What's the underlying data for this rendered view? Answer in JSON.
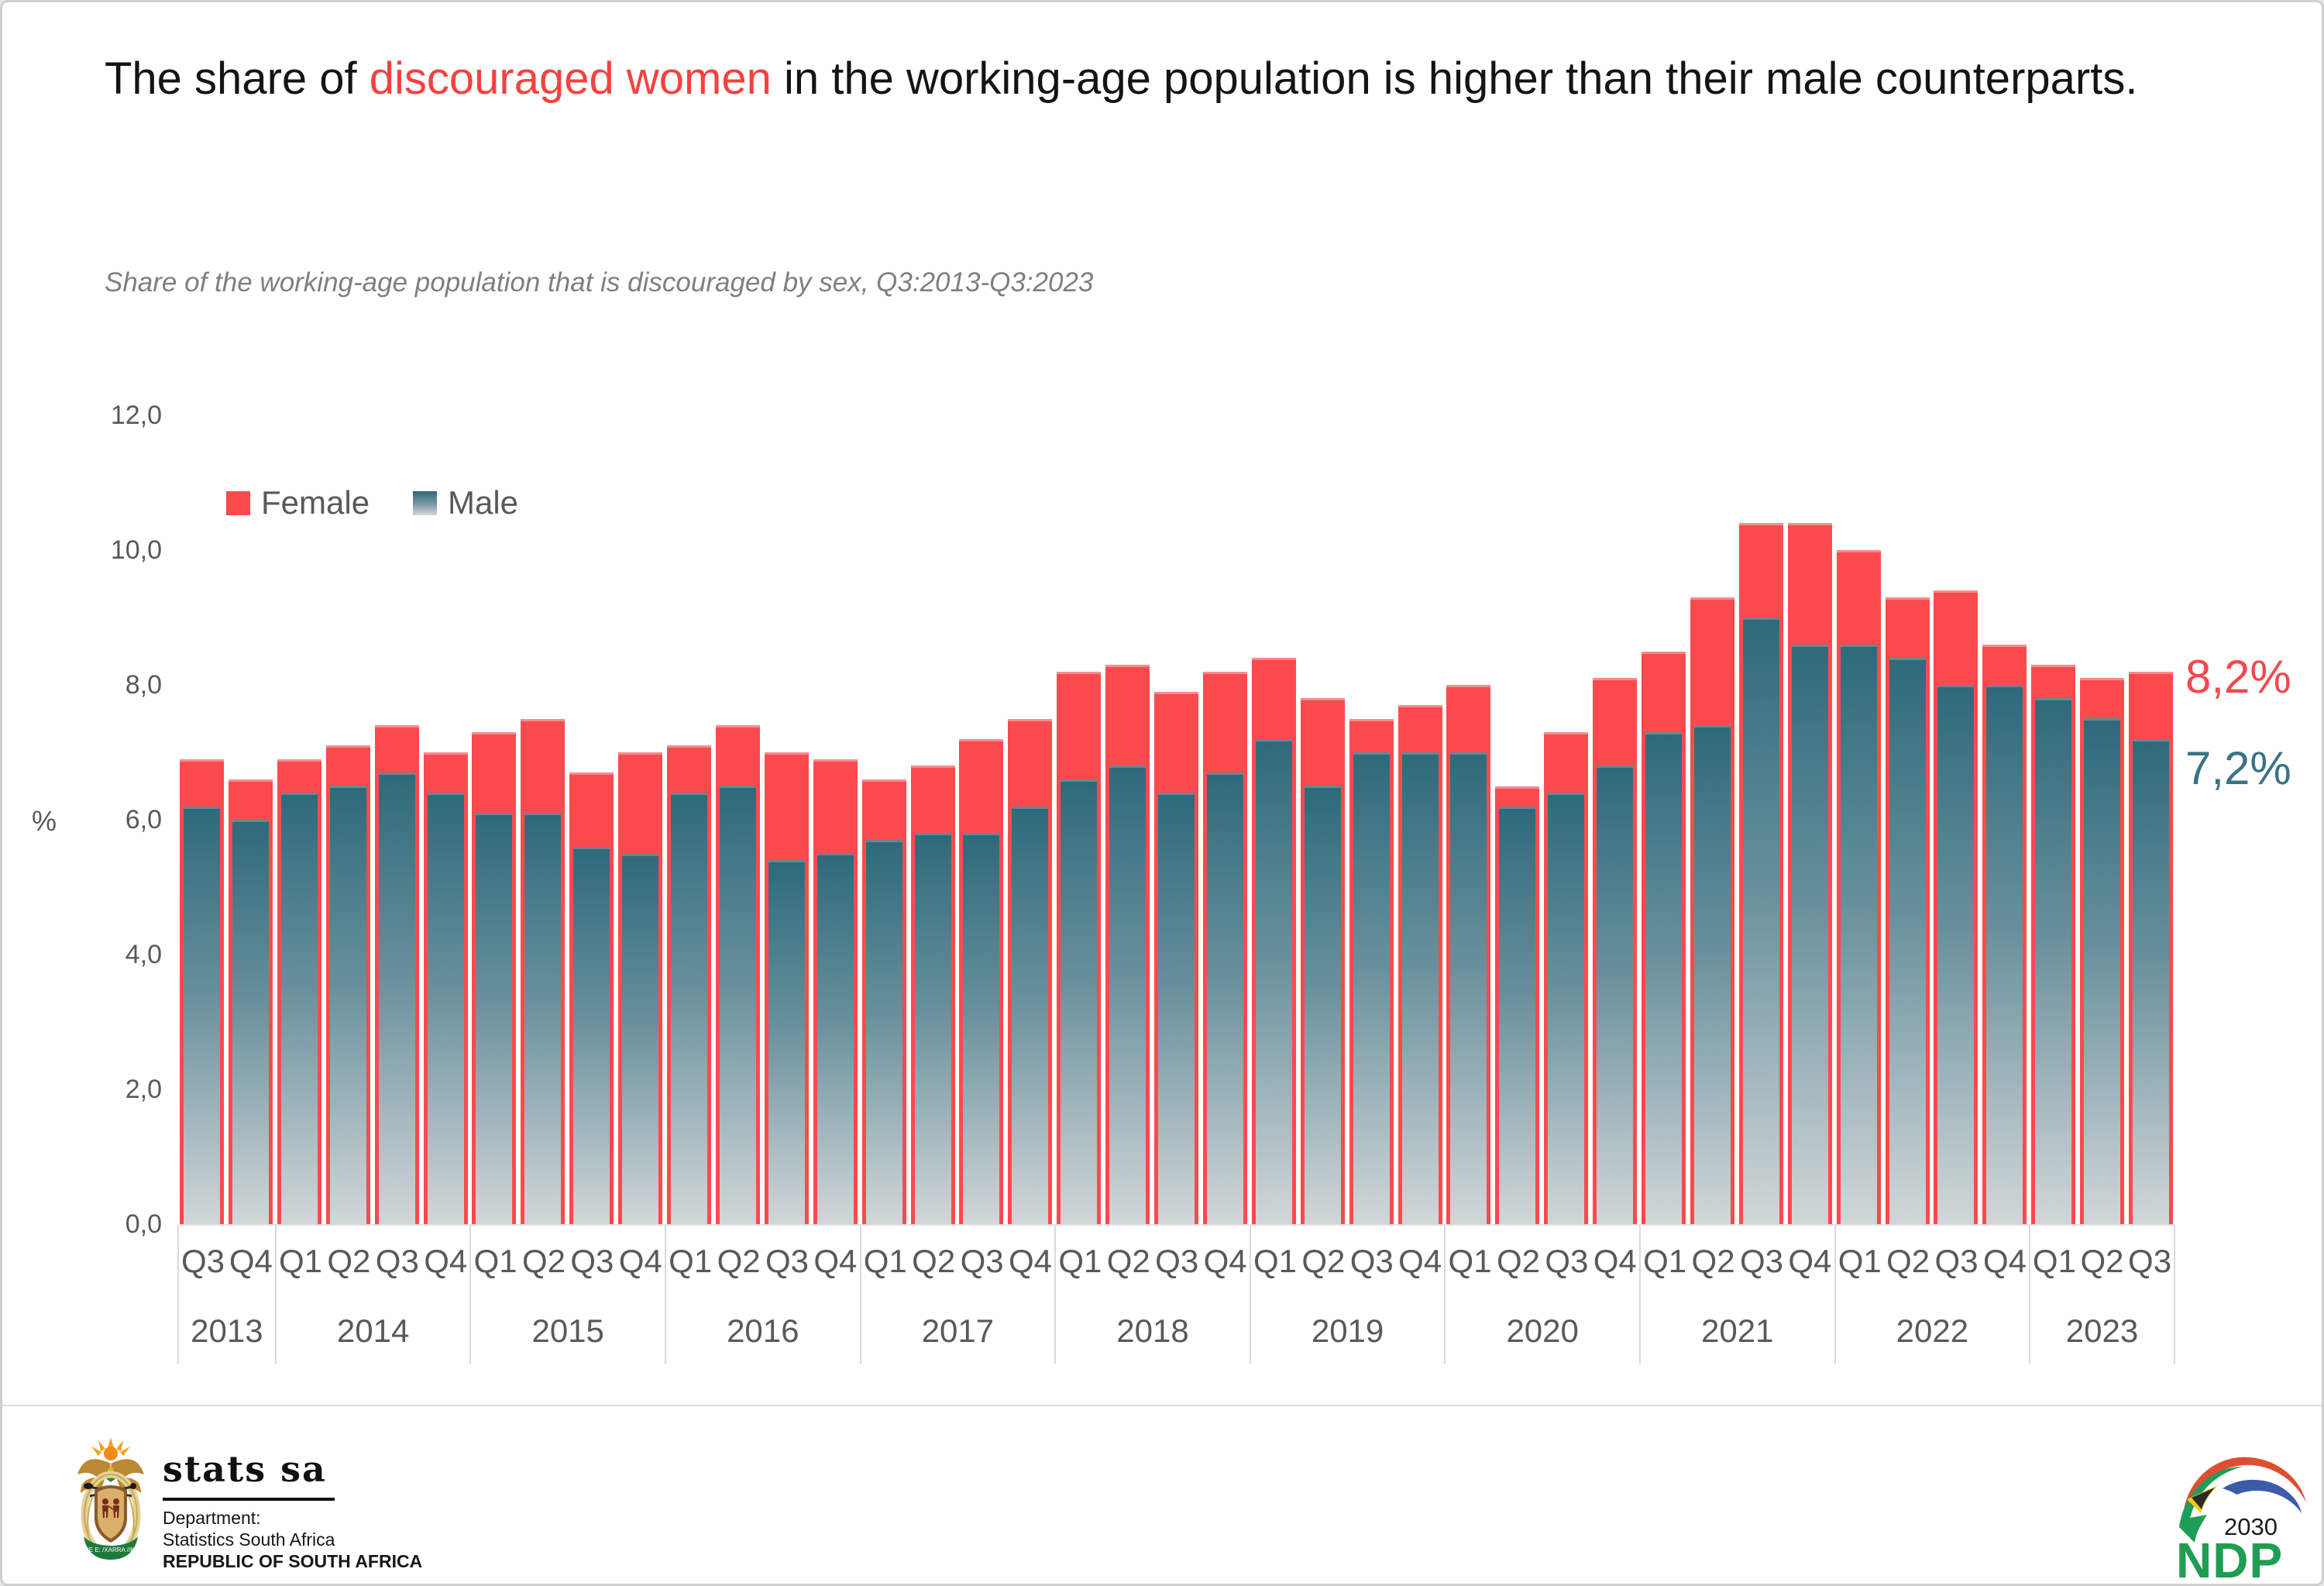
{
  "title": {
    "prefix": "The share of ",
    "highlight": "discouraged women",
    "suffix": " in the working-age population is higher than their male counterparts."
  },
  "subtitle": "Share of the working-age population that is discouraged by sex, Q3:2013-Q3:2023",
  "legend": {
    "female_label": "Female",
    "male_label": "Male"
  },
  "colors": {
    "female_bar": "#fb4a4e",
    "male_bar_top": "#2e6a7b",
    "male_bar_bottom": "#d2d7d9",
    "female_end_label": "#f4484c",
    "male_end_label": "#3a7386",
    "axis_text": "#595959",
    "title_highlight": "#f5413e",
    "subtitle_text": "#7f7f7f"
  },
  "y_axis": {
    "unit": "%",
    "tick_values": [
      0,
      2,
      4,
      6,
      8,
      10,
      12
    ],
    "tick_labels": [
      "0,0",
      "2,0",
      "4,0",
      "6,0",
      "8,0",
      "10,0",
      "12,0"
    ]
  },
  "end_labels": {
    "female": "8,2%",
    "male": "7,2%"
  },
  "chart_data": {
    "type": "bar",
    "title": "Share of the working-age population that is discouraged by sex, Q3:2013-Q3:2023",
    "xlabel": "",
    "ylabel": "%",
    "ylim": [
      0,
      12
    ],
    "grid": false,
    "legend_position": "top-left",
    "bar_style": "overlapped (Male bar drawn inside Female bar)",
    "years": [
      {
        "year": "2013",
        "quarters": [
          "Q3",
          "Q4"
        ]
      },
      {
        "year": "2014",
        "quarters": [
          "Q1",
          "Q2",
          "Q3",
          "Q4"
        ]
      },
      {
        "year": "2015",
        "quarters": [
          "Q1",
          "Q2",
          "Q3",
          "Q4"
        ]
      },
      {
        "year": "2016",
        "quarters": [
          "Q1",
          "Q2",
          "Q3",
          "Q4"
        ]
      },
      {
        "year": "2017",
        "quarters": [
          "Q1",
          "Q2",
          "Q3",
          "Q4"
        ]
      },
      {
        "year": "2018",
        "quarters": [
          "Q1",
          "Q2",
          "Q3",
          "Q4"
        ]
      },
      {
        "year": "2019",
        "quarters": [
          "Q1",
          "Q2",
          "Q3",
          "Q4"
        ]
      },
      {
        "year": "2020",
        "quarters": [
          "Q1",
          "Q2",
          "Q3",
          "Q4"
        ]
      },
      {
        "year": "2021",
        "quarters": [
          "Q1",
          "Q2",
          "Q3",
          "Q4"
        ]
      },
      {
        "year": "2022",
        "quarters": [
          "Q1",
          "Q2",
          "Q3",
          "Q4"
        ]
      },
      {
        "year": "2023",
        "quarters": [
          "Q1",
          "Q2",
          "Q3"
        ]
      }
    ],
    "categories": [
      "Q3 2013",
      "Q4 2013",
      "Q1 2014",
      "Q2 2014",
      "Q3 2014",
      "Q4 2014",
      "Q1 2015",
      "Q2 2015",
      "Q3 2015",
      "Q4 2015",
      "Q1 2016",
      "Q2 2016",
      "Q3 2016",
      "Q4 2016",
      "Q1 2017",
      "Q2 2017",
      "Q3 2017",
      "Q4 2017",
      "Q1 2018",
      "Q2 2018",
      "Q3 2018",
      "Q4 2018",
      "Q1 2019",
      "Q2 2019",
      "Q3 2019",
      "Q4 2019",
      "Q1 2020",
      "Q2 2020",
      "Q3 2020",
      "Q4 2020",
      "Q1 2021",
      "Q2 2021",
      "Q3 2021",
      "Q4 2021",
      "Q1 2022",
      "Q2 2022",
      "Q3 2022",
      "Q4 2022",
      "Q1 2023",
      "Q2 2023",
      "Q3 2023"
    ],
    "series": [
      {
        "name": "Female",
        "values": [
          6.9,
          6.6,
          6.9,
          7.1,
          7.4,
          7.0,
          7.3,
          7.5,
          6.7,
          7.0,
          7.1,
          7.4,
          7.0,
          6.9,
          6.6,
          6.8,
          7.2,
          7.5,
          8.2,
          8.3,
          7.9,
          8.2,
          8.4,
          7.8,
          7.5,
          7.7,
          8.0,
          6.5,
          7.3,
          8.1,
          8.5,
          9.3,
          10.4,
          10.4,
          10.0,
          9.3,
          9.4,
          8.6,
          8.3,
          8.1,
          8.2
        ]
      },
      {
        "name": "Male",
        "values": [
          6.2,
          6.0,
          6.4,
          6.5,
          6.7,
          6.4,
          6.1,
          6.1,
          5.6,
          5.5,
          6.4,
          6.5,
          5.4,
          5.5,
          5.7,
          5.8,
          5.8,
          6.2,
          6.6,
          6.8,
          6.4,
          6.7,
          7.2,
          6.5,
          7.0,
          7.0,
          7.0,
          6.2,
          6.4,
          6.8,
          7.3,
          7.4,
          9.0,
          8.6,
          8.6,
          8.4,
          8.0,
          8.0,
          7.8,
          7.5,
          7.2
        ]
      }
    ]
  },
  "footer": {
    "statssa": {
      "wordmark": "stats sa",
      "dept_line1": "Department:",
      "dept_line2": "Statistics South Africa",
      "dept_line3": "REPUBLIC OF SOUTH AFRICA",
      "motto": "!KE E: /XARRA //KE"
    },
    "ndp": {
      "year": "2030",
      "acronym": "NDP"
    }
  }
}
